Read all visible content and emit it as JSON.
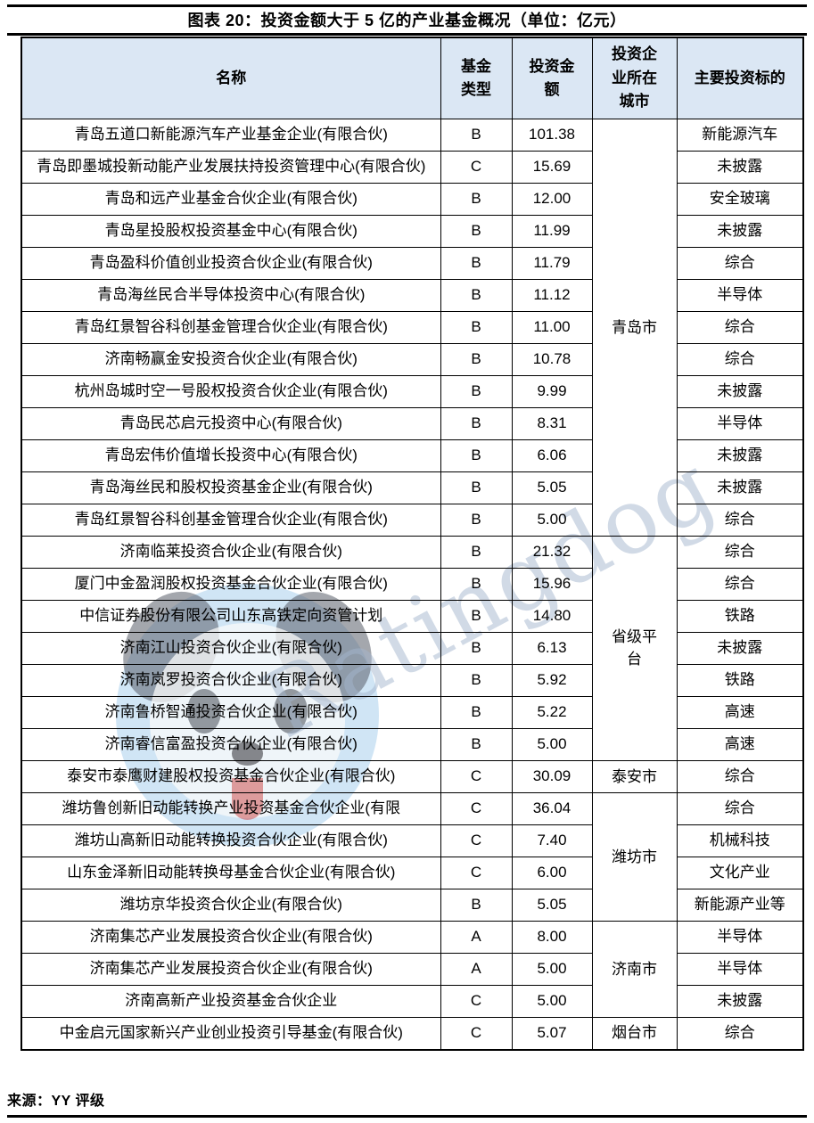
{
  "figure": {
    "title": "图表 20：投资金额大于 5 亿的产业基金概况（单位：亿元）",
    "source": "来源：YY 评级"
  },
  "watermark": {
    "text": "Ratingdog",
    "logo": "dog-face-logo"
  },
  "colors": {
    "header_bg": "#DBE7F4",
    "border": "#000000",
    "watermark_text": "#A4B5CD",
    "watermark_logo_blue": "#8FC0E8"
  },
  "table": {
    "columns": [
      "名称",
      "基金类型",
      "投资金额",
      "投资企业所在城市",
      "主要投资标的"
    ],
    "city_groups": [
      {
        "city": "青岛市",
        "rowspan": 13
      },
      {
        "city": "省级平台",
        "rowspan": 7
      },
      {
        "city": "泰安市",
        "rowspan": 1
      },
      {
        "city": "潍坊市",
        "rowspan": 4
      },
      {
        "city": "济南市",
        "rowspan": 3
      },
      {
        "city": "烟台市",
        "rowspan": 1
      }
    ],
    "rows": [
      {
        "name": "青岛五道口新能源汽车产业基金企业(有限合伙)",
        "type": "B",
        "amount": "101.38",
        "target": "新能源汽车"
      },
      {
        "name": "青岛即墨城投新动能产业发展扶持投资管理中心(有限合伙)",
        "type": "C",
        "amount": "15.69",
        "target": "未披露"
      },
      {
        "name": "青岛和远产业基金合伙企业(有限合伙)",
        "type": "B",
        "amount": "12.00",
        "target": "安全玻璃"
      },
      {
        "name": "青岛星投股权投资基金中心(有限合伙)",
        "type": "B",
        "amount": "11.99",
        "target": "未披露"
      },
      {
        "name": "青岛盈科价值创业投资合伙企业(有限合伙)",
        "type": "B",
        "amount": "11.79",
        "target": "综合"
      },
      {
        "name": "青岛海丝民合半导体投资中心(有限合伙)",
        "type": "B",
        "amount": "11.12",
        "target": "半导体"
      },
      {
        "name": "青岛红景智谷科创基金管理合伙企业(有限合伙)",
        "type": "B",
        "amount": "11.00",
        "target": "综合"
      },
      {
        "name": "济南畅赢金安投资合伙企业(有限合伙)",
        "type": "B",
        "amount": "10.78",
        "target": "综合"
      },
      {
        "name": "杭州岛城时空一号股权投资合伙企业(有限合伙)",
        "type": "B",
        "amount": "9.99",
        "target": "未披露"
      },
      {
        "name": "青岛民芯启元投资中心(有限合伙)",
        "type": "B",
        "amount": "8.31",
        "target": "半导体"
      },
      {
        "name": "青岛宏伟价值增长投资中心(有限合伙)",
        "type": "B",
        "amount": "6.06",
        "target": "未披露"
      },
      {
        "name": "青岛海丝民和股权投资基金企业(有限合伙)",
        "type": "B",
        "amount": "5.05",
        "target": "未披露"
      },
      {
        "name": "青岛红景智谷科创基金管理合伙企业(有限合伙)",
        "type": "B",
        "amount": "5.00",
        "target": "综合"
      },
      {
        "name": "济南临莱投资合伙企业(有限合伙)",
        "type": "B",
        "amount": "21.32",
        "target": "综合"
      },
      {
        "name": "厦门中金盈润股权投资基金合伙企业(有限合伙)",
        "type": "B",
        "amount": "15.96",
        "target": "综合"
      },
      {
        "name": "中信证券股份有限公司山东高铁定向资管计划",
        "type": "B",
        "amount": "14.80",
        "target": "铁路"
      },
      {
        "name": "济南江山投资合伙企业(有限合伙)",
        "type": "B",
        "amount": "6.13",
        "target": "未披露"
      },
      {
        "name": "济南岚罗投资合伙企业(有限合伙)",
        "type": "B",
        "amount": "5.92",
        "target": "铁路"
      },
      {
        "name": "济南鲁桥智通投资合伙企业(有限合伙)",
        "type": "B",
        "amount": "5.22",
        "target": "高速"
      },
      {
        "name": "济南睿信富盈投资合伙企业(有限合伙)",
        "type": "B",
        "amount": "5.00",
        "target": "高速"
      },
      {
        "name": "泰安市泰鹰财建股权投资基金合伙企业(有限合伙)",
        "type": "C",
        "amount": "30.09",
        "target": "综合"
      },
      {
        "name": "潍坊鲁创新旧动能转换产业投资基金合伙企业(有限",
        "type": "C",
        "amount": "36.04",
        "target": "综合"
      },
      {
        "name": "潍坊山高新旧动能转换投资合伙企业(有限合伙)",
        "type": "C",
        "amount": "7.40",
        "target": "机械科技"
      },
      {
        "name": "山东金泽新旧动能转换母基金合伙企业(有限合伙)",
        "type": "C",
        "amount": "6.00",
        "target": "文化产业"
      },
      {
        "name": "潍坊京华投资合伙企业(有限合伙)",
        "type": "B",
        "amount": "5.05",
        "target": "新能源产业等"
      },
      {
        "name": "济南集芯产业发展投资合伙企业(有限合伙)",
        "type": "A",
        "amount": "8.00",
        "target": "半导体"
      },
      {
        "name": "济南集芯产业发展投资合伙企业(有限合伙)",
        "type": "A",
        "amount": "5.00",
        "target": "半导体"
      },
      {
        "name": "济南高新产业投资基金合伙企业",
        "type": "C",
        "amount": "5.00",
        "target": "未披露"
      },
      {
        "name": "中金启元国家新兴产业创业投资引导基金(有限合伙)",
        "type": "C",
        "amount": "5.07",
        "target": "综合"
      }
    ]
  }
}
